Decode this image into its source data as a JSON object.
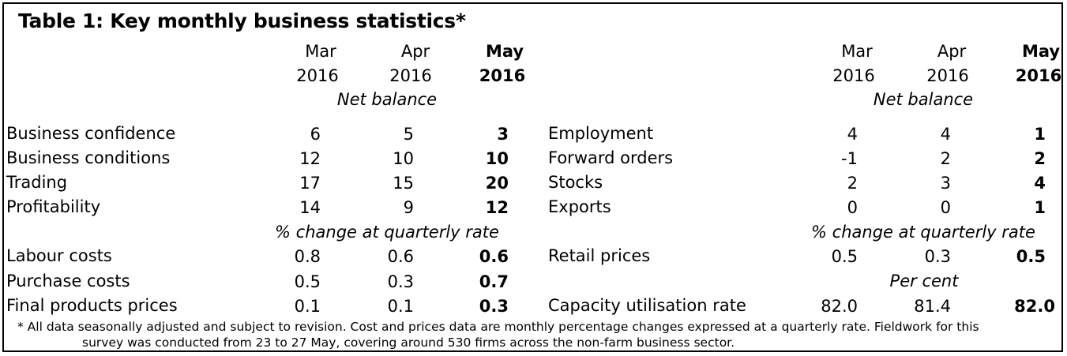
{
  "title": "Table 1:  Key monthly business statistics*",
  "columns": {
    "months": [
      "Mar",
      "Apr",
      "May"
    ],
    "years": [
      "2016",
      "2016",
      "2016"
    ]
  },
  "units": {
    "net_balance": "Net balance",
    "pct_quarterly": "% change at quarterly rate",
    "per_cent": "Per cent"
  },
  "left_rows": [
    {
      "label": "Business confidence",
      "values": [
        "6",
        "5",
        "3"
      ]
    },
    {
      "label": "Business conditions",
      "values": [
        "12",
        "10",
        "10"
      ]
    },
    {
      "label": "Trading",
      "values": [
        "17",
        "15",
        "20"
      ]
    },
    {
      "label": "Profitability",
      "values": [
        "14",
        "9",
        "12"
      ]
    },
    {
      "label": "Labour costs",
      "values": [
        "0.8",
        "0.6",
        "0.6"
      ]
    },
    {
      "label": "Purchase costs",
      "values": [
        "0.5",
        "0.3",
        "0.7"
      ]
    },
    {
      "label": "Final products prices",
      "values": [
        "0.1",
        "0.1",
        "0.3"
      ]
    }
  ],
  "right_rows": [
    {
      "label": "Employment",
      "values": [
        "4",
        "4",
        "1"
      ]
    },
    {
      "label": "Forward orders",
      "values": [
        "-1",
        "2",
        "2"
      ]
    },
    {
      "label": "Stocks",
      "values": [
        "2",
        "3",
        "4"
      ]
    },
    {
      "label": "Exports",
      "values": [
        "0",
        "0",
        "1"
      ]
    },
    {
      "label": "Retail prices",
      "values": [
        "0.5",
        "0.3",
        "0.5"
      ]
    },
    {
      "label": "Capacity utilisation rate",
      "values": [
        "82.0",
        "81.4",
        "82.0"
      ]
    }
  ],
  "footnote": {
    "line1": "* All data seasonally adjusted and subject to revision. Cost and prices data are monthly percentage changes expressed at a quarterly rate. Fieldwork for this",
    "line2": "survey was conducted from 23 to 27 May,  covering around 530 firms across the non-farm business sector."
  }
}
